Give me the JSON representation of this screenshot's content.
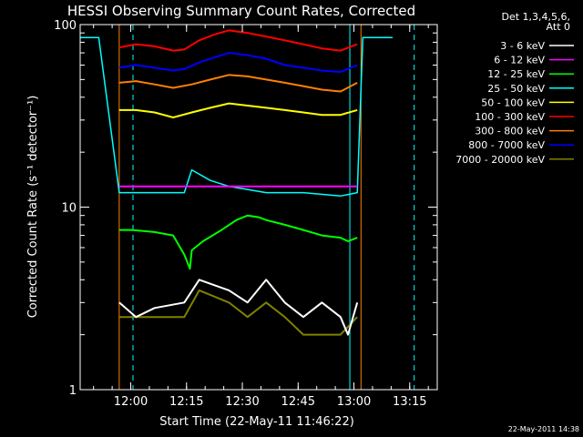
{
  "chart_data": {
    "type": "line",
    "title": "HESSI Observing Summary Count Rates, Corrected",
    "xlabel": "Start Time (22-May-11 11:46:22)",
    "ylabel": "Corrected Count Rate (s⁻¹ detector⁻¹)",
    "x_unit": "minutes after 11:46:22",
    "xlim": [
      0,
      96
    ],
    "ylim": [
      1,
      100
    ],
    "yscale": "log",
    "x_ticks": [
      {
        "label": "12:00",
        "value": 13.6
      },
      {
        "label": "12:15",
        "value": 28.6
      },
      {
        "label": "12:30",
        "value": 43.6
      },
      {
        "label": "12:45",
        "value": 58.6
      },
      {
        "label": "13:00",
        "value": 73.6
      },
      {
        "label": "13:15",
        "value": 88.6
      }
    ],
    "y_ticks": [
      {
        "label": "1",
        "value": 1
      },
      {
        "label": "10",
        "value": 10
      },
      {
        "label": "100",
        "value": 100
      }
    ],
    "legend_header": [
      "Det 1,3,4,5,6,",
      "Att 0"
    ],
    "legend_position": "right",
    "series": [
      {
        "name": "3 - 6 keV",
        "color": "#ffffff",
        "x": [
          10.5,
          15,
          20,
          28,
          32,
          40,
          45,
          50,
          55,
          60,
          65,
          70,
          72,
          74.5
        ],
        "values": [
          3.0,
          2.5,
          2.8,
          3.0,
          4.0,
          3.5,
          3.0,
          4.0,
          3.0,
          2.5,
          3.0,
          2.5,
          2.0,
          3.0
        ]
      },
      {
        "name": "6 - 12 keV",
        "color": "#ff00ff",
        "x": [
          10.5,
          20,
          30,
          40,
          50,
          60,
          70,
          74.5
        ],
        "values": [
          13,
          13,
          13,
          13,
          13,
          13,
          13,
          13
        ]
      },
      {
        "name": "12 - 25 keV",
        "color": "#00ff00",
        "x": [
          10.5,
          14,
          20,
          25,
          28,
          29.5,
          30,
          33,
          38,
          42,
          45,
          48,
          50,
          55,
          60,
          65,
          70,
          72,
          74.5
        ],
        "values": [
          7.5,
          7.5,
          7.3,
          7.0,
          5.5,
          4.6,
          5.8,
          6.5,
          7.5,
          8.5,
          9.0,
          8.8,
          8.5,
          8.0,
          7.5,
          7.0,
          6.8,
          6.5,
          6.8
        ]
      },
      {
        "name": "25 - 50 keV",
        "color": "#00ffff",
        "x": [
          0,
          5,
          10.5,
          20,
          28,
          30,
          35,
          40,
          45,
          50,
          60,
          70,
          74.5,
          76,
          84
        ],
        "values": [
          85,
          85,
          12,
          12,
          12,
          16,
          14,
          13,
          12.5,
          12,
          12,
          11.5,
          12,
          85,
          85
        ]
      },
      {
        "name": "50 - 100 keV",
        "color": "#ffff00",
        "x": [
          10.5,
          15,
          20,
          25,
          30,
          35,
          40,
          45,
          50,
          55,
          60,
          65,
          70,
          74.5
        ],
        "values": [
          34,
          34,
          33,
          31,
          33,
          35,
          37,
          36,
          35,
          34,
          33,
          32,
          32,
          34
        ]
      },
      {
        "name": "100 - 300 keV",
        "color": "#ff0000",
        "x": [
          10.5,
          15,
          20,
          25,
          28,
          32,
          36,
          40,
          45,
          50,
          55,
          60,
          65,
          70,
          74.5
        ],
        "values": [
          75,
          78,
          76,
          72,
          73,
          82,
          88,
          93,
          90,
          86,
          82,
          78,
          74,
          72,
          78
        ]
      },
      {
        "name": "300 - 800 keV",
        "color": "#ff8000",
        "x": [
          10.5,
          15,
          20,
          25,
          30,
          35,
          40,
          45,
          50,
          55,
          60,
          65,
          70,
          74.5
        ],
        "values": [
          48,
          49,
          47,
          45,
          47,
          50,
          53,
          52,
          50,
          48,
          46,
          44,
          43,
          48
        ]
      },
      {
        "name": "800 - 7000 keV",
        "color": "#0000ff",
        "x": [
          10.5,
          15,
          20,
          25,
          28,
          32,
          36,
          40,
          45,
          50,
          55,
          60,
          65,
          70,
          74.5
        ],
        "values": [
          58,
          60,
          58,
          56,
          57,
          62,
          66,
          70,
          68,
          65,
          60,
          58,
          56,
          55,
          60
        ]
      },
      {
        "name": "7000 - 20000 keV",
        "color": "#808000",
        "x": [
          10.5,
          20,
          28,
          32,
          40,
          45,
          50,
          55,
          60,
          65,
          70,
          74.5
        ],
        "values": [
          2.5,
          2.5,
          2.5,
          3.5,
          3.0,
          2.5,
          3.0,
          2.5,
          2.0,
          2.0,
          2.0,
          2.5
        ]
      }
    ],
    "vertical_lines": [
      {
        "value": 0,
        "color": "#00ffff",
        "style": "solid"
      },
      {
        "value": 10.5,
        "color": "#ff8000",
        "style": "solid"
      },
      {
        "value": 14.2,
        "color": "#00ffff",
        "style": "dashed"
      },
      {
        "value": 72.5,
        "color": "#00ffff",
        "style": "solid"
      },
      {
        "value": 75.5,
        "color": "#ff8000",
        "style": "solid"
      },
      {
        "value": 89.8,
        "color": "#00ffff",
        "style": "dashed"
      }
    ],
    "grid": false
  },
  "footer": {
    "timestamp": "22-May-2011 14:38"
  }
}
